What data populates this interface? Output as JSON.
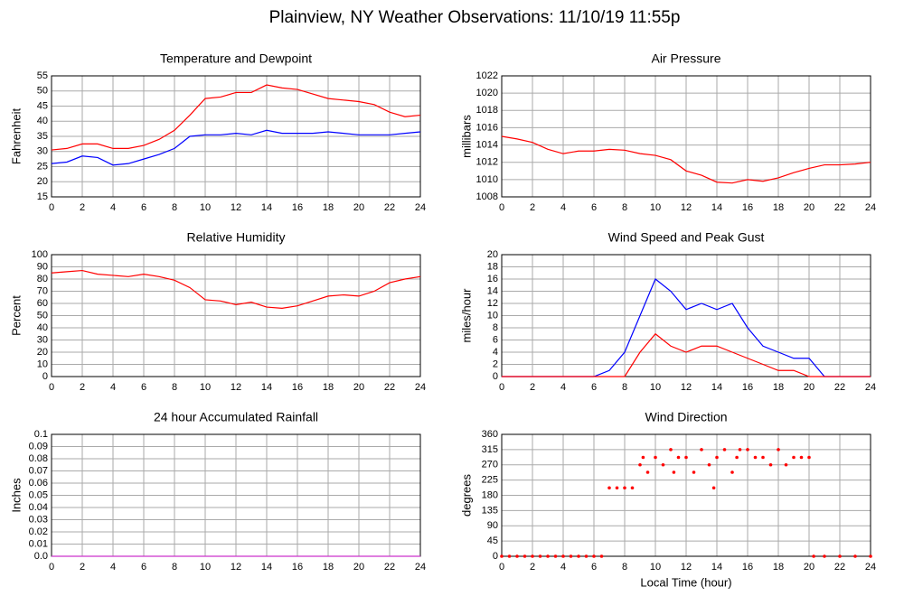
{
  "title": "Plainview, NY Weather Observations: 11/10/19 11:55p",
  "chart_data": [
    {
      "type": "line",
      "title": "Temperature and Dewpoint",
      "ylabel": "Fahrenheit",
      "x": [
        0,
        1,
        2,
        3,
        4,
        5,
        6,
        7,
        8,
        9,
        10,
        11,
        12,
        13,
        14,
        15,
        16,
        17,
        18,
        19,
        20,
        21,
        22,
        23,
        24
      ],
      "xlim": [
        0,
        24
      ],
      "xticks": [
        0,
        2,
        4,
        6,
        8,
        10,
        12,
        14,
        16,
        18,
        20,
        22,
        24
      ],
      "ylim": [
        15,
        55
      ],
      "yticks": [
        15,
        20,
        25,
        30,
        35,
        40,
        45,
        50,
        55
      ],
      "grid": true,
      "series": [
        {
          "name": "Temperature",
          "color": "#ff0000",
          "values": [
            30.5,
            31,
            32.5,
            32.5,
            31,
            31,
            32,
            34,
            37,
            42,
            47.5,
            48,
            49.5,
            49.5,
            52,
            51,
            50.5,
            49,
            47.5,
            47,
            46.5,
            45.5,
            43,
            41.5,
            42
          ]
        },
        {
          "name": "Dewpoint",
          "color": "#0000ff",
          "values": [
            26,
            26.5,
            28.5,
            28,
            25.5,
            26,
            27.5,
            29,
            31,
            35,
            35.5,
            35.5,
            36,
            35.5,
            37,
            36,
            36,
            36,
            36.5,
            36,
            35.5,
            35.5,
            35.5,
            36,
            36.5
          ]
        }
      ]
    },
    {
      "type": "line",
      "title": "Air Pressure",
      "ylabel": "millibars",
      "x": [
        0,
        1,
        2,
        3,
        4,
        5,
        6,
        7,
        8,
        9,
        10,
        11,
        12,
        13,
        14,
        15,
        16,
        17,
        18,
        19,
        20,
        21,
        22,
        23,
        24
      ],
      "xlim": [
        0,
        24
      ],
      "xticks": [
        0,
        2,
        4,
        6,
        8,
        10,
        12,
        14,
        16,
        18,
        20,
        22,
        24
      ],
      "ylim": [
        1008,
        1022
      ],
      "yticks": [
        1008,
        1010,
        1012,
        1014,
        1016,
        1018,
        1020,
        1022
      ],
      "grid": true,
      "series": [
        {
          "name": "Pressure",
          "color": "#ff0000",
          "values": [
            1015,
            1014.7,
            1014.3,
            1013.5,
            1013,
            1013.3,
            1013.3,
            1013.5,
            1013.4,
            1013,
            1012.8,
            1012.3,
            1011,
            1010.5,
            1009.7,
            1009.6,
            1010,
            1009.8,
            1010.2,
            1010.8,
            1011.3,
            1011.7,
            1011.7,
            1011.8,
            1012
          ]
        }
      ]
    },
    {
      "type": "line",
      "title": "Relative Humidity",
      "ylabel": "Percent",
      "x": [
        0,
        1,
        2,
        3,
        4,
        5,
        6,
        7,
        8,
        9,
        10,
        11,
        12,
        13,
        14,
        15,
        16,
        17,
        18,
        19,
        20,
        21,
        22,
        23,
        24
      ],
      "xlim": [
        0,
        24
      ],
      "xticks": [
        0,
        2,
        4,
        6,
        8,
        10,
        12,
        14,
        16,
        18,
        20,
        22,
        24
      ],
      "ylim": [
        0,
        100
      ],
      "yticks": [
        0,
        10,
        20,
        30,
        40,
        50,
        60,
        70,
        80,
        90,
        100
      ],
      "grid": true,
      "series": [
        {
          "name": "Humidity",
          "color": "#ff0000",
          "values": [
            85,
            86,
            87,
            84,
            83,
            82,
            84,
            82,
            79,
            73,
            63,
            62,
            59,
            61,
            57,
            56,
            58,
            62,
            66,
            67,
            66,
            70,
            77,
            80,
            82
          ]
        }
      ]
    },
    {
      "type": "line",
      "title": "Wind Speed and Peak Gust",
      "ylabel": "miles/hour",
      "x": [
        0,
        1,
        2,
        3,
        4,
        5,
        6,
        7,
        8,
        9,
        10,
        11,
        12,
        13,
        14,
        15,
        16,
        17,
        18,
        19,
        20,
        21,
        22,
        23,
        24
      ],
      "xlim": [
        0,
        24
      ],
      "xticks": [
        0,
        2,
        4,
        6,
        8,
        10,
        12,
        14,
        16,
        18,
        20,
        22,
        24
      ],
      "ylim": [
        0,
        20
      ],
      "yticks": [
        0,
        2,
        4,
        6,
        8,
        10,
        12,
        14,
        16,
        18,
        20
      ],
      "grid": true,
      "series": [
        {
          "name": "Peak Gust",
          "color": "#0000ff",
          "values": [
            0,
            0,
            0,
            0,
            0,
            0,
            0,
            1,
            4,
            10,
            16,
            14,
            11,
            12,
            11,
            12,
            8,
            5,
            4,
            3,
            3,
            0,
            0,
            0,
            0
          ]
        },
        {
          "name": "Wind Speed",
          "color": "#ff0000",
          "values": [
            0,
            0,
            0,
            0,
            0,
            0,
            0,
            0,
            0,
            4,
            7,
            5,
            4,
            5,
            5,
            4,
            3,
            2,
            1,
            1,
            0,
            0,
            0,
            0,
            0
          ]
        }
      ]
    },
    {
      "type": "line",
      "title": "24 hour Accumulated Rainfall",
      "ylabel": "Inches",
      "x": [
        0,
        1,
        2,
        3,
        4,
        5,
        6,
        7,
        8,
        9,
        10,
        11,
        12,
        13,
        14,
        15,
        16,
        17,
        18,
        19,
        20,
        21,
        22,
        23,
        24
      ],
      "xlim": [
        0,
        24
      ],
      "xticks": [
        0,
        2,
        4,
        6,
        8,
        10,
        12,
        14,
        16,
        18,
        20,
        22,
        24
      ],
      "ylim": [
        0,
        0.1
      ],
      "yticks": [
        {
          "value": 0,
          "label": "0.0"
        },
        0.01,
        0.02,
        0.03,
        0.04,
        0.05,
        0.06,
        0.07,
        0.08,
        0.09,
        0.1
      ],
      "grid": true,
      "series": [
        {
          "name": "Rainfall",
          "color": "#cc33cc",
          "values": [
            0,
            0,
            0,
            0,
            0,
            0,
            0,
            0,
            0,
            0,
            0,
            0,
            0,
            0,
            0,
            0,
            0,
            0,
            0,
            0,
            0,
            0,
            0,
            0,
            0
          ]
        }
      ]
    },
    {
      "type": "scatter",
      "title": "Wind Direction",
      "ylabel": "degrees",
      "xlabel": "Local Time (hour)",
      "x": [
        0,
        0.5,
        1,
        1.5,
        2,
        2.5,
        3,
        3.5,
        4,
        4.5,
        5,
        5.5,
        6,
        6.5,
        7,
        7.5,
        8,
        8.5,
        9,
        9.2,
        9.5,
        10,
        10.5,
        11,
        11.2,
        11.5,
        12,
        12.5,
        13,
        13.5,
        13.8,
        14,
        14.5,
        15,
        15.3,
        15.5,
        16,
        16.5,
        17,
        17.5,
        18,
        18.5,
        19,
        19.5,
        20,
        20.3,
        21,
        22,
        23,
        24
      ],
      "xlim": [
        0,
        24
      ],
      "xticks": [
        0,
        2,
        4,
        6,
        8,
        10,
        12,
        14,
        16,
        18,
        20,
        22,
        24
      ],
      "ylim": [
        0,
        360
      ],
      "yticks": [
        0,
        45,
        90,
        135,
        180,
        225,
        270,
        315,
        360
      ],
      "grid": true,
      "series": [
        {
          "name": "Direction",
          "color": "#ff0000",
          "values": [
            0,
            0,
            0,
            0,
            0,
            0,
            0,
            0,
            0,
            0,
            0,
            0,
            0,
            0,
            202,
            202,
            202,
            202,
            270,
            292,
            248,
            292,
            270,
            315,
            248,
            292,
            292,
            248,
            315,
            270,
            202,
            292,
            315,
            248,
            292,
            315,
            315,
            292,
            292,
            270,
            315,
            270,
            292,
            292,
            292,
            0,
            0,
            0,
            0,
            0
          ]
        }
      ]
    }
  ]
}
